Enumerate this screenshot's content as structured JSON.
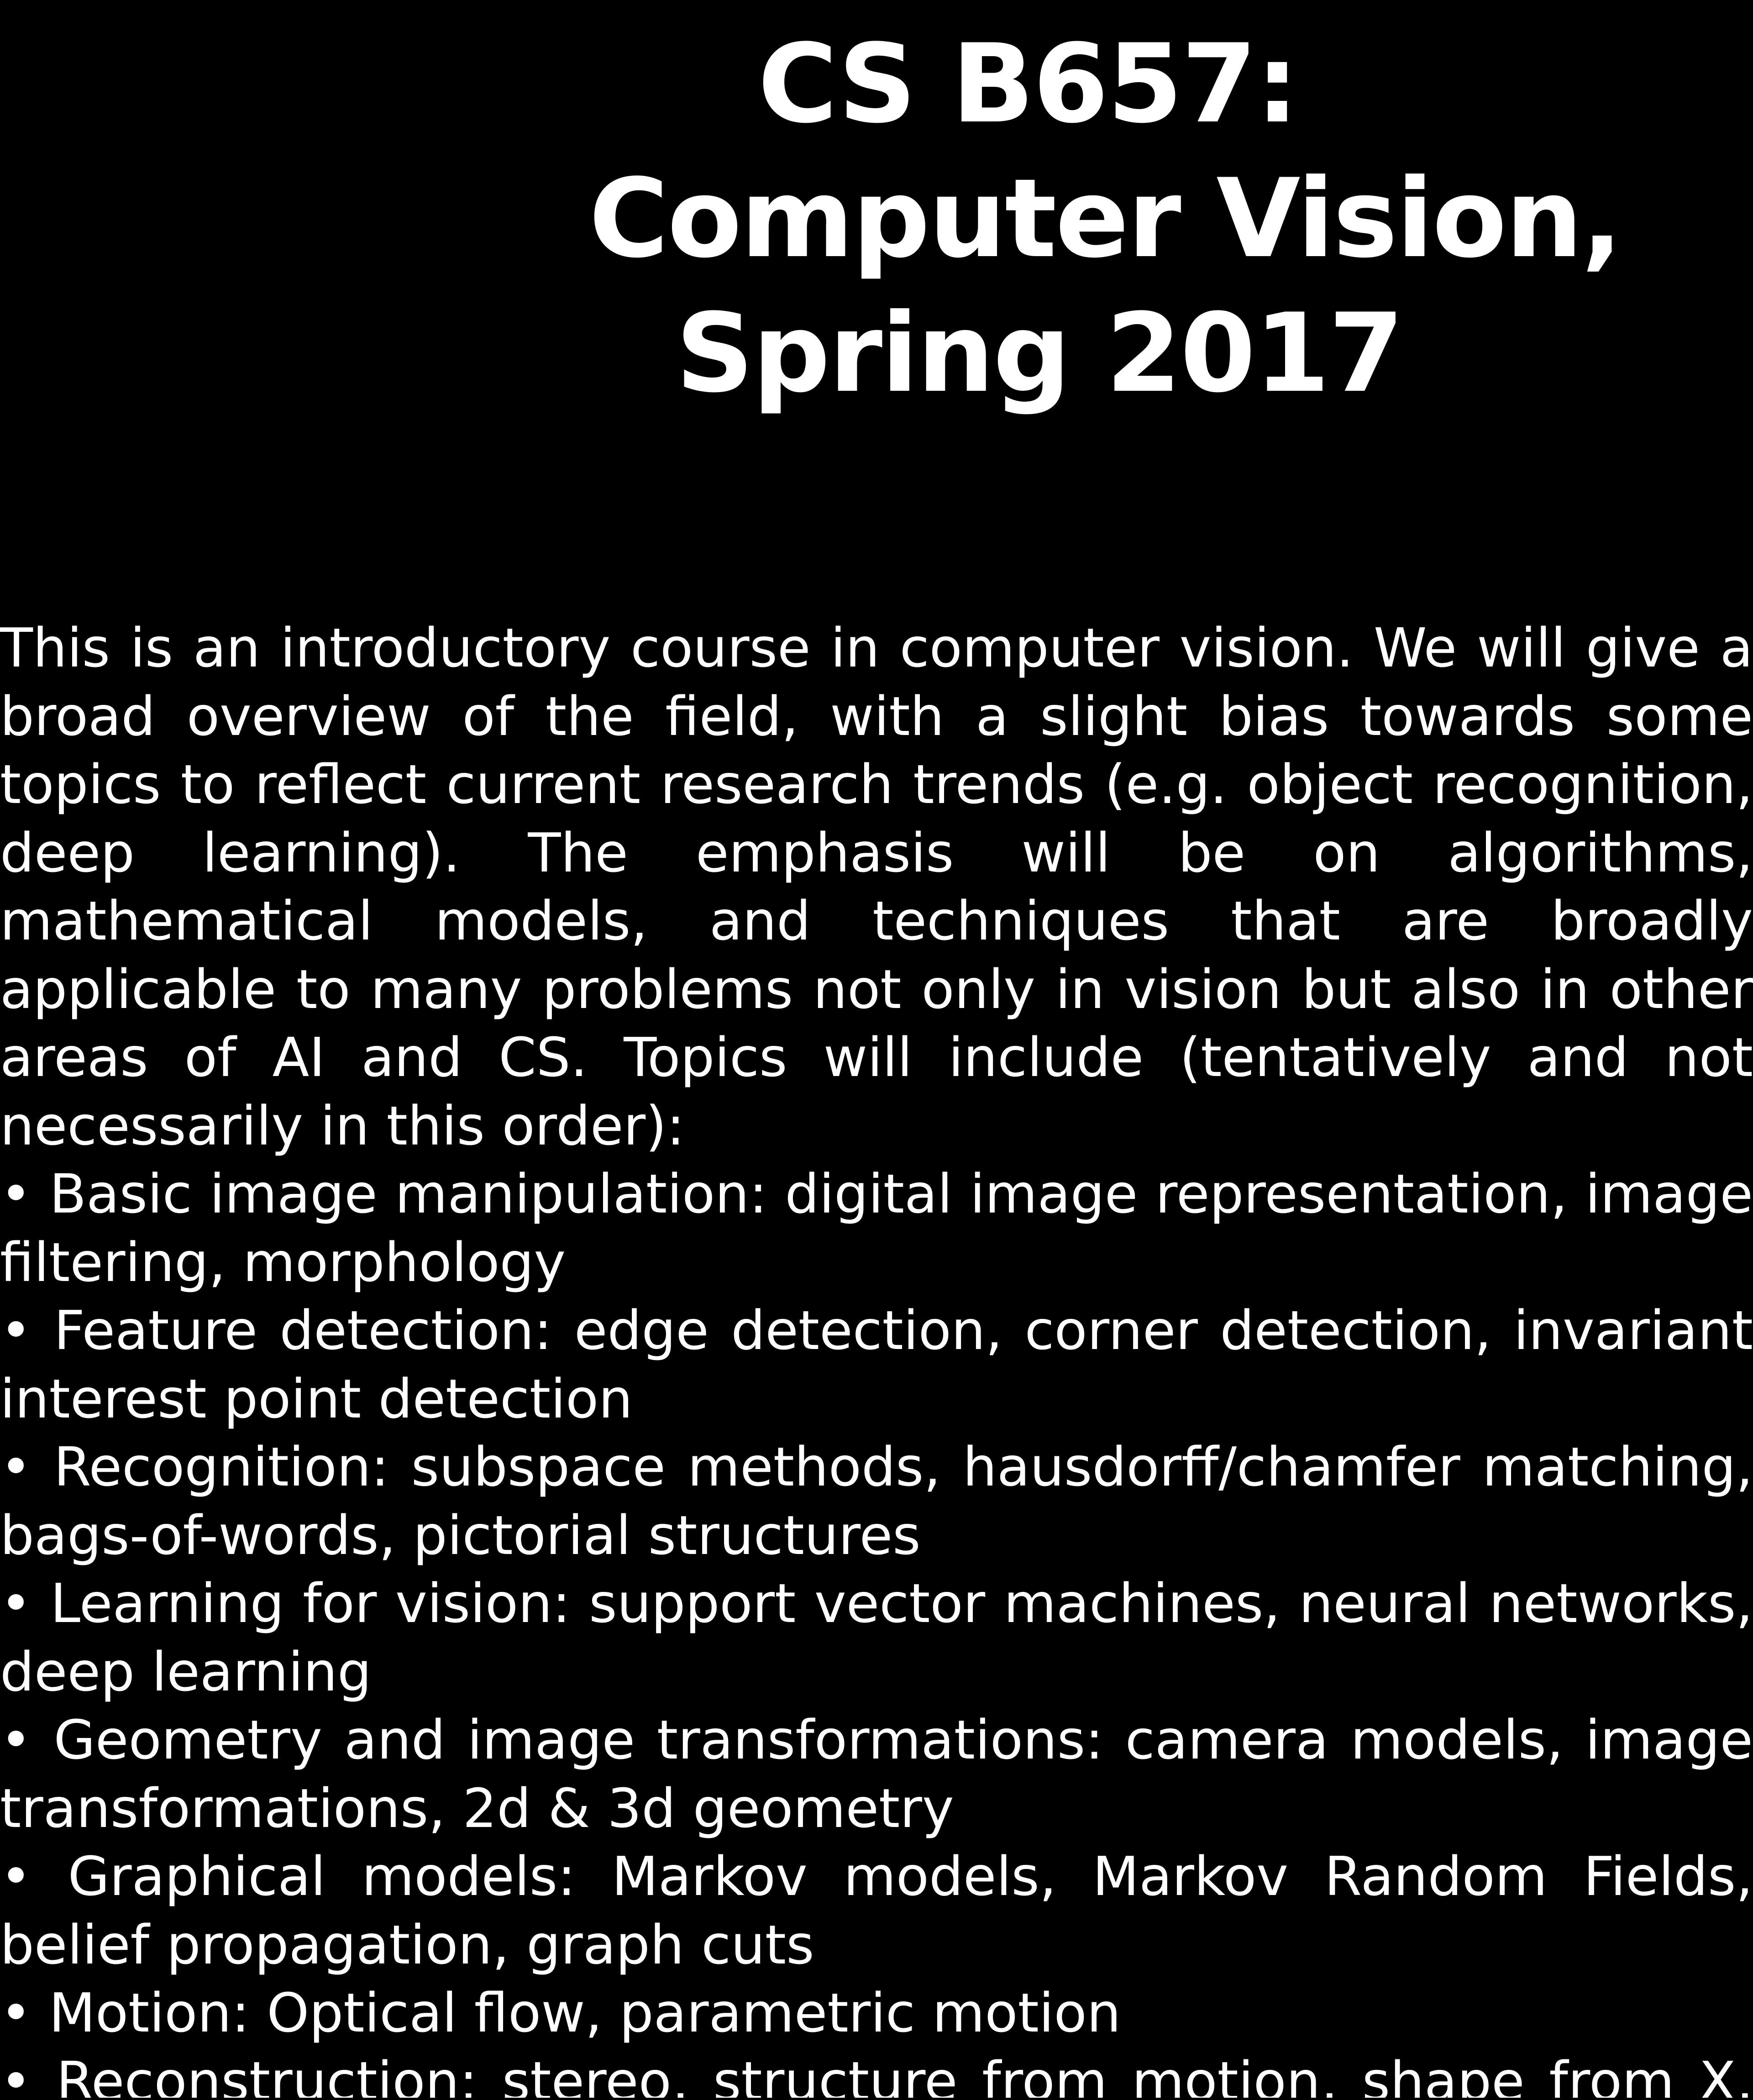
{
  "colors": {
    "background": "#000000",
    "text": "#ffffff"
  },
  "title": {
    "line1": "CS B657:",
    "line2": "Computer Vision,",
    "line3": "Spring 2017"
  },
  "body": {
    "lines": [
      "This is an introductory course in computer vision. We will give a",
      "broad overview of the field, with a slight bias towards some",
      "topics to reflect current research trends (e.g. object recognition,",
      "deep learning). The emphasis will be on algorithms,",
      "mathematical models, and techniques that are broadly",
      "applicable to many problems not only in vision but also in other",
      "areas of AI and CS. Topics will include (tentatively and not",
      "necessarily in this order):",
      "• Basic image manipulation: digital image representation, image",
      "filtering, morphology",
      "• Feature detection: edge detection, corner detection, invariant",
      "interest point detection",
      "• Recognition: subspace methods, hausdorff/chamfer matching,",
      "bags-of-words, pictorial structures",
      "• Learning for vision: support vector machines, neural networks,",
      "deep learning",
      "• Geometry and image transformations: camera models, image",
      "transformations, 2d & 3d geometry",
      "• Graphical models: Markov models, Markov Random Fields,",
      "belief propagation, graph cuts",
      "• Motion: Optical flow, parametric motion",
      "• Reconstruction: stereo, structure from motion, shape from X,"
    ]
  }
}
